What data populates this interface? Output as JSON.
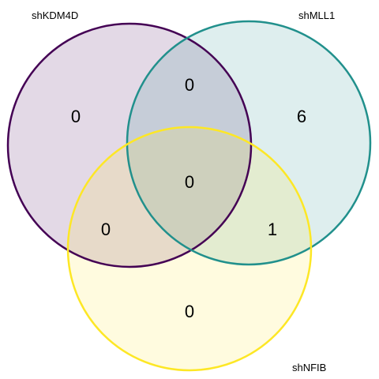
{
  "diagram": {
    "type": "venn",
    "sets": [
      {
        "name": "shKDM4D",
        "stroke": "#440154",
        "fill": "#440154",
        "fill_opacity": 0.15
      },
      {
        "name": "shMLL1",
        "stroke": "#21908C",
        "fill": "#21908C",
        "fill_opacity": 0.15
      },
      {
        "name": "shNFIB",
        "stroke": "#FDE725",
        "fill": "#FDE725",
        "fill_opacity": 0.15
      }
    ],
    "regions": {
      "shKDM4D_only": "0",
      "shMLL1_only": "6",
      "shNFIB_only": "0",
      "shKDM4D_shMLL1": "0",
      "shKDM4D_shNFIB": "0",
      "shMLL1_shNFIB": "1",
      "all_three": "0"
    }
  }
}
